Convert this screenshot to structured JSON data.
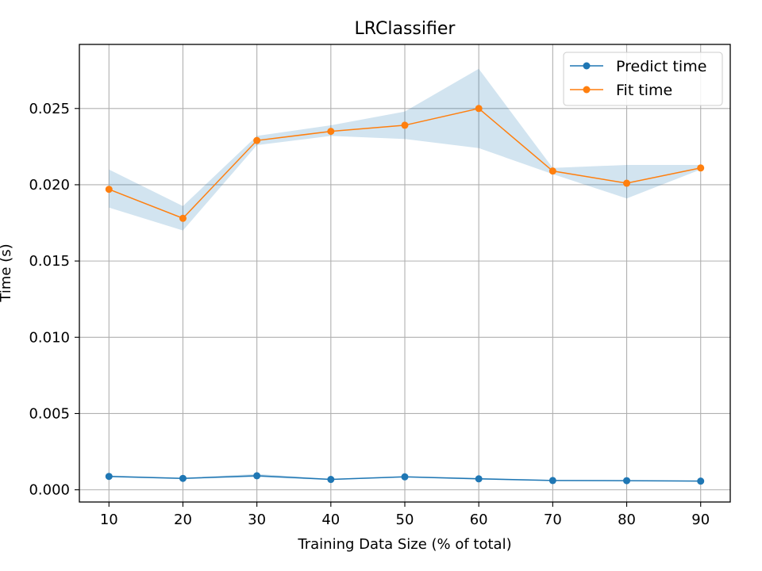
{
  "chart_data": {
    "type": "line",
    "title": "LRClassifier",
    "xlabel": "Training Data Size (% of total)",
    "ylabel": "Time (s)",
    "x": [
      10,
      20,
      30,
      40,
      50,
      60,
      70,
      80,
      90
    ],
    "xlim": [
      6,
      94
    ],
    "ylim": [
      -0.0008,
      0.0292
    ],
    "xticks": [
      10,
      20,
      30,
      40,
      50,
      60,
      70,
      80,
      90
    ],
    "yticks": [
      0.0,
      0.005,
      0.01,
      0.015,
      0.02,
      0.025
    ],
    "ytick_labels": [
      "0.000",
      "0.005",
      "0.010",
      "0.015",
      "0.020",
      "0.025"
    ],
    "grid": true,
    "legend_position": "top-right",
    "series": [
      {
        "name": "Predict time",
        "color": "#1f77b4",
        "values": [
          0.00088,
          0.00075,
          0.00092,
          0.00068,
          0.00085,
          0.00072,
          0.00061,
          0.0006,
          0.00057
        ],
        "band_low": [
          0.00082,
          0.00071,
          0.00082,
          0.00064,
          0.00081,
          0.00066,
          0.00058,
          0.00057,
          0.00054
        ],
        "band_high": [
          0.00094,
          0.00079,
          0.00104,
          0.00072,
          0.00089,
          0.00078,
          0.00064,
          0.00063,
          0.0006
        ]
      },
      {
        "name": "Fit time",
        "color": "#ff7f0e",
        "band_color": "#1f77b4",
        "values": [
          0.0197,
          0.0178,
          0.0229,
          0.0235,
          0.0239,
          0.025,
          0.0209,
          0.0201,
          0.0211
        ],
        "band_low": [
          0.0185,
          0.017,
          0.0226,
          0.0232,
          0.023,
          0.0224,
          0.0207,
          0.0191,
          0.021
        ],
        "band_high": [
          0.021,
          0.0186,
          0.0232,
          0.0239,
          0.0248,
          0.0276,
          0.0211,
          0.0213,
          0.0213
        ]
      }
    ]
  }
}
